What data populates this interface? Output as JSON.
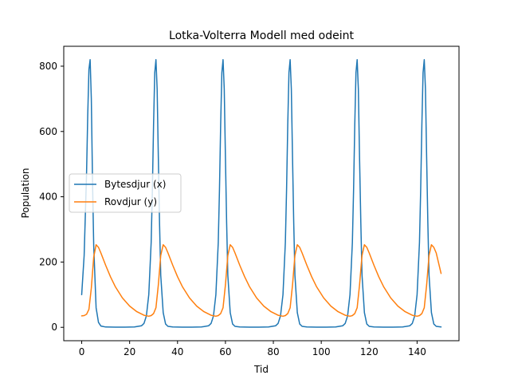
{
  "chart_data": {
    "type": "line",
    "title": "Lotka-Volterra Modell med odeint",
    "xlabel": "Tid",
    "ylabel": "Population",
    "xlim": [
      -7.5,
      157.5
    ],
    "ylim": [
      -41,
      861
    ],
    "xticks": [
      0,
      20,
      40,
      60,
      80,
      100,
      120,
      140
    ],
    "yticks": [
      0,
      200,
      400,
      600,
      800
    ],
    "grid": false,
    "legend_position": "center-left",
    "series": [
      {
        "name": "Bytesdjur (x)",
        "color": "#1f77b4",
        "x": [
          0,
          1,
          2,
          2.5,
          3,
          3.5,
          4,
          4.5,
          5,
          6,
          7,
          8,
          10,
          14,
          18,
          22,
          25,
          26,
          27,
          28,
          29,
          29.5,
          30,
          30.5,
          31,
          31.5,
          32,
          32.5,
          33,
          34,
          35,
          36,
          38,
          42,
          46,
          50,
          53,
          54,
          55,
          56,
          57,
          57.5,
          58,
          58.5,
          59,
          59.5,
          60,
          60.5,
          61,
          62,
          63,
          64,
          66,
          70,
          74,
          78,
          81,
          82,
          83,
          84,
          85,
          85.5,
          86,
          86.5,
          87,
          87.5,
          88,
          88.5,
          89,
          90,
          91,
          92,
          94,
          98,
          102,
          106,
          109,
          110,
          111,
          112,
          113,
          113.5,
          114,
          114.5,
          115,
          115.5,
          116,
          116.5,
          117,
          118,
          119,
          120,
          122,
          126,
          130,
          134,
          137,
          138,
          139,
          140,
          141,
          141.5,
          142,
          142.5,
          143,
          143.5,
          144,
          144.5,
          145,
          146,
          147,
          148,
          150
        ],
        "y": [
          100,
          220,
          470,
          650,
          790,
          820,
          700,
          450,
          250,
          60,
          15,
          4,
          1,
          0.5,
          0.5,
          1,
          5,
          12,
          35,
          100,
          260,
          420,
          620,
          780,
          820,
          730,
          520,
          320,
          160,
          45,
          10,
          3,
          1,
          0.5,
          0.5,
          1,
          5,
          12,
          35,
          100,
          260,
          420,
          620,
          780,
          820,
          730,
          520,
          320,
          160,
          45,
          10,
          3,
          1,
          0.5,
          0.5,
          1,
          5,
          12,
          35,
          100,
          260,
          420,
          620,
          780,
          820,
          730,
          520,
          320,
          160,
          45,
          10,
          3,
          1,
          0.5,
          0.5,
          1,
          5,
          12,
          35,
          100,
          260,
          420,
          620,
          780,
          820,
          730,
          520,
          320,
          160,
          45,
          10,
          3,
          1,
          0.5,
          0.5,
          1,
          5,
          12,
          35,
          100,
          260,
          420,
          620,
          780,
          820,
          730,
          520,
          320,
          160,
          45,
          10,
          3,
          1
        ]
      },
      {
        "name": "Rovdjur (y)",
        "color": "#ff7f0e",
        "x": [
          0,
          1,
          2,
          3,
          4,
          5,
          6,
          7,
          8,
          10,
          12,
          14,
          17,
          20,
          23,
          26,
          28,
          29,
          30,
          31,
          32,
          33,
          34,
          35,
          36,
          38,
          40,
          42,
          45,
          48,
          51,
          54,
          56,
          57,
          58,
          59,
          60,
          61,
          62,
          63,
          64,
          66,
          68,
          70,
          73,
          76,
          79,
          82,
          84,
          85,
          86,
          87,
          88,
          89,
          90,
          91,
          92,
          94,
          96,
          98,
          101,
          104,
          107,
          110,
          112,
          113,
          114,
          115,
          116,
          117,
          118,
          119,
          120,
          122,
          124,
          126,
          129,
          132,
          135,
          138,
          140,
          141,
          142,
          143,
          144,
          145,
          146,
          147,
          148,
          150
        ],
        "y": [
          35,
          36,
          40,
          55,
          120,
          215,
          253,
          245,
          228,
          190,
          155,
          125,
          90,
          65,
          48,
          37,
          34,
          36,
          42,
          60,
          130,
          220,
          253,
          245,
          228,
          190,
          155,
          125,
          90,
          65,
          48,
          37,
          34,
          36,
          42,
          60,
          130,
          220,
          253,
          245,
          228,
          190,
          155,
          125,
          90,
          65,
          48,
          37,
          34,
          36,
          42,
          60,
          130,
          220,
          253,
          245,
          228,
          190,
          155,
          125,
          90,
          65,
          48,
          37,
          34,
          36,
          42,
          60,
          130,
          220,
          253,
          245,
          228,
          190,
          155,
          125,
          90,
          65,
          48,
          37,
          34,
          36,
          42,
          60,
          130,
          220,
          253,
          245,
          228,
          165
        ]
      }
    ]
  }
}
